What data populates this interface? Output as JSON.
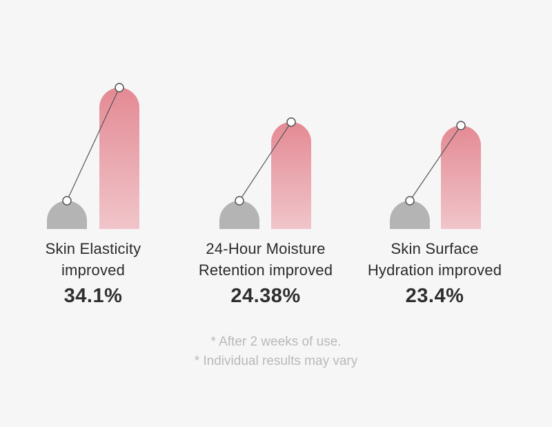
{
  "chart_data": {
    "type": "bar",
    "items": [
      {
        "label_line1": "Skin Elasticity",
        "label_line2": "improved",
        "value_text": "34.1%",
        "value": 34.1
      },
      {
        "label_line1": "24-Hour Moisture",
        "label_line2": "Retention improved",
        "value_text": "24.38%",
        "value": 24.38
      },
      {
        "label_line1": "Skin Surface",
        "label_line2": "Hydration improved",
        "value_text": "23.4%",
        "value": 23.4
      }
    ],
    "colors": {
      "baseline_bar": "#b4b4b4",
      "improved_bar_top": "#e48a94",
      "improved_bar_bottom": "#f0c5ca",
      "connector": "#555555"
    }
  },
  "footnotes": {
    "line1": "* After 2 weeks of use.",
    "line2": "* Individual results may vary"
  }
}
